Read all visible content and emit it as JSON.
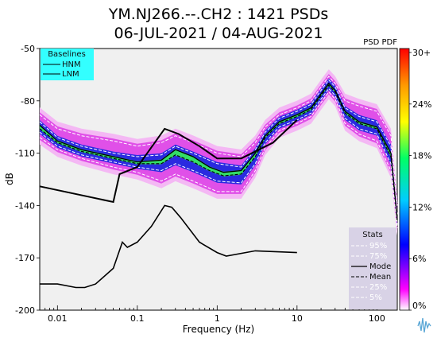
{
  "chart_data": {
    "type": "line",
    "title": "YM.NJ266.--.CH2 : 1421 PSDs",
    "subtitle": "06-JUL-2021 / 04-AUG-2021",
    "xlabel": "Frequency (Hz)",
    "ylabel": "dB",
    "x_scale": "log",
    "xlim": [
      0.006,
      180
    ],
    "ylim": [
      -200,
      -50
    ],
    "x_ticks": [
      {
        "value": 0.01,
        "label": "0.01"
      },
      {
        "value": 0.1,
        "label": "0.1"
      },
      {
        "value": 1,
        "label": "1"
      },
      {
        "value": 10,
        "label": "10"
      },
      {
        "value": 100,
        "label": "100"
      }
    ],
    "y_ticks": [
      {
        "value": -50,
        "label": "-50"
      },
      {
        "value": -80,
        "label": "-80"
      },
      {
        "value": -110,
        "label": "-110"
      },
      {
        "value": -140,
        "label": "-140"
      },
      {
        "value": -170,
        "label": "-170"
      },
      {
        "value": -200,
        "label": "-200"
      }
    ],
    "colorbar": {
      "title": "PSD PDF",
      "ticks": [
        "30+",
        "24%",
        "18%",
        "12%",
        "6%",
        "0%"
      ],
      "colors": [
        "#ff0000",
        "#ff9900",
        "#ffff00",
        "#00ff66",
        "#00ccff",
        "#0000ff",
        "#ff00ff",
        "#ffffff"
      ]
    },
    "baselines_legend": {
      "title": "Baselines",
      "items": [
        "HNM",
        "LNM"
      ],
      "color": "#33ffff"
    },
    "stats_legend": {
      "title": "Stats",
      "items": [
        "95%",
        "75%",
        "Mode",
        "Mean",
        "25%",
        "5%"
      ]
    },
    "series": [
      {
        "name": "HNM",
        "x": [
          0.006,
          0.05,
          0.06,
          0.1,
          0.22,
          0.33,
          0.6,
          1,
          2,
          5,
          10
        ],
        "y": [
          -129,
          -138,
          -122,
          -118,
          -96,
          -99,
          -106,
          -113,
          -113,
          -104,
          -91
        ]
      },
      {
        "name": "LNM",
        "x": [
          0.006,
          0.01,
          0.017,
          0.022,
          0.03,
          0.05,
          0.065,
          0.075,
          0.1,
          0.15,
          0.22,
          0.27,
          0.35,
          0.6,
          1,
          1.3,
          3,
          10
        ],
        "y": [
          -185,
          -185,
          -187,
          -187,
          -185,
          -176,
          -161,
          -164,
          -161,
          -152,
          -140,
          -141,
          -147,
          -161,
          -167,
          -169,
          -166,
          -167
        ]
      },
      {
        "name": "Mode",
        "x": [
          0.006,
          0.01,
          0.02,
          0.05,
          0.1,
          0.2,
          0.3,
          0.5,
          0.8,
          1.2,
          2,
          3,
          4,
          6,
          10,
          15,
          20,
          25,
          30,
          40,
          60,
          100,
          150,
          180
        ],
        "y": [
          -94,
          -103,
          -108,
          -112,
          -115,
          -114,
          -108,
          -112,
          -118,
          -121,
          -120,
          -110,
          -100,
          -92,
          -88,
          -84,
          -76,
          -70,
          -74,
          -86,
          -92,
          -95,
          -110,
          -148
        ]
      },
      {
        "name": "Mean",
        "x": [
          0.006,
          0.01,
          0.02,
          0.05,
          0.1,
          0.2,
          0.3,
          0.5,
          0.8,
          1.2,
          2,
          3,
          4,
          6,
          10,
          15,
          20,
          25,
          30,
          40,
          60,
          100,
          150,
          180
        ],
        "y": [
          -96,
          -104,
          -109,
          -113,
          -116,
          -116,
          -111,
          -115,
          -120,
          -123,
          -122,
          -112,
          -101,
          -93,
          -89,
          -85,
          -77,
          -71,
          -75,
          -87,
          -93,
          -96,
          -112,
          -149
        ]
      },
      {
        "name": "95%",
        "x": [
          0.006,
          0.01,
          0.02,
          0.05,
          0.1,
          0.2,
          0.3,
          0.5,
          1,
          2,
          3,
          4,
          6,
          10,
          15,
          20,
          25,
          30,
          40,
          60,
          100,
          150,
          180
        ],
        "y": [
          -88,
          -96,
          -100,
          -103,
          -106,
          -104,
          -100,
          -104,
          -110,
          -112,
          -104,
          -95,
          -88,
          -84,
          -80,
          -72,
          -66,
          -70,
          -80,
          -83,
          -86,
          -100,
          -140
        ]
      },
      {
        "name": "75%",
        "x": [
          0.006,
          0.01,
          0.02,
          0.05,
          0.1,
          0.2,
          0.3,
          0.5,
          1,
          2,
          3,
          4,
          6,
          10,
          15,
          20,
          25,
          30,
          40,
          60,
          100,
          150,
          180
        ],
        "y": [
          -92,
          -101,
          -106,
          -110,
          -112,
          -111,
          -106,
          -110,
          -116,
          -118,
          -108,
          -98,
          -90,
          -86,
          -82,
          -74,
          -68,
          -72,
          -84,
          -89,
          -92,
          -106,
          -145
        ]
      },
      {
        "name": "25%",
        "x": [
          0.006,
          0.01,
          0.02,
          0.05,
          0.1,
          0.2,
          0.3,
          0.5,
          1,
          2,
          3,
          4,
          6,
          10,
          15,
          20,
          25,
          30,
          40,
          60,
          100,
          150,
          180
        ],
        "y": [
          -98,
          -106,
          -111,
          -115,
          -118,
          -120,
          -116,
          -120,
          -126,
          -127,
          -116,
          -104,
          -95,
          -91,
          -87,
          -79,
          -73,
          -77,
          -90,
          -96,
          -99,
          -116,
          -151
        ]
      },
      {
        "name": "5%",
        "x": [
          0.006,
          0.01,
          0.02,
          0.05,
          0.1,
          0.2,
          0.3,
          0.5,
          1,
          2,
          3,
          4,
          6,
          10,
          15,
          20,
          25,
          30,
          40,
          60,
          100,
          150,
          180
        ],
        "y": [
          -101,
          -108,
          -113,
          -118,
          -121,
          -126,
          -122,
          -126,
          -132,
          -132,
          -120,
          -107,
          -97,
          -93,
          -89,
          -81,
          -75,
          -79,
          -93,
          -99,
          -103,
          -120,
          -153
        ]
      }
    ]
  }
}
